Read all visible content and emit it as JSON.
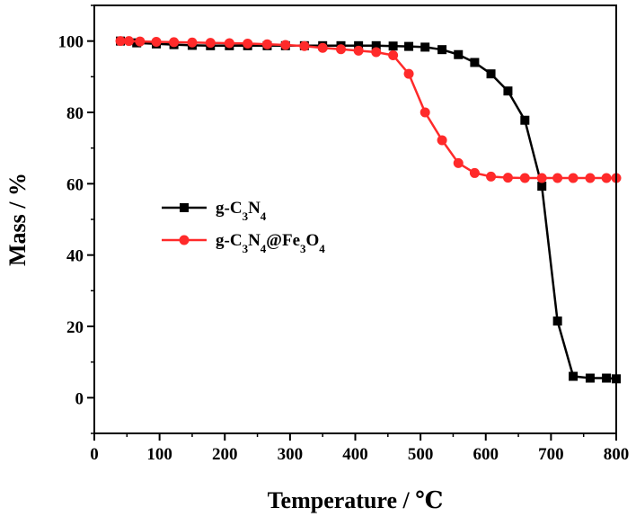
{
  "chart_data": {
    "type": "line",
    "title": "",
    "xlabel": "Temperature / ℃",
    "ylabel": "Mass / %",
    "xlim": [
      0,
      800
    ],
    "ylim": [
      -10,
      110
    ],
    "xticks": [
      0,
      100,
      200,
      300,
      400,
      500,
      600,
      700,
      800
    ],
    "yticks": [
      0,
      20,
      40,
      60,
      80,
      100
    ],
    "grid": false,
    "legend_placement": "center-left",
    "series": [
      {
        "name": "g-C3N4",
        "legend_parts": [
          {
            "t": "g-C",
            "sub": false
          },
          {
            "t": "3",
            "sub": true
          },
          {
            "t": "N",
            "sub": false
          },
          {
            "t": "4",
            "sub": true
          }
        ],
        "color": "#000000",
        "marker": "square",
        "x": [
          40,
          65,
          95,
          122,
          150,
          178,
          207,
          235,
          265,
          293,
          322,
          350,
          378,
          405,
          432,
          458,
          482,
          507,
          533,
          558,
          583,
          608,
          634,
          660,
          686,
          710,
          734,
          760,
          785,
          800
        ],
        "y": [
          100,
          99.5,
          99.2,
          99.0,
          98.8,
          98.7,
          98.7,
          98.7,
          98.7,
          98.7,
          98.7,
          98.7,
          98.7,
          98.7,
          98.7,
          98.6,
          98.5,
          98.3,
          97.6,
          96.2,
          94.0,
          90.8,
          86.0,
          77.8,
          59.3,
          21.5,
          6.0,
          5.5,
          5.5,
          5.3
        ]
      },
      {
        "name": "g-C3N4@Fe3O4",
        "legend_parts": [
          {
            "t": "g-C",
            "sub": false
          },
          {
            "t": "3",
            "sub": true
          },
          {
            "t": "N",
            "sub": false
          },
          {
            "t": "4",
            "sub": true
          },
          {
            "t": "@Fe",
            "sub": false
          },
          {
            "t": "3",
            "sub": true
          },
          {
            "t": "O",
            "sub": false
          },
          {
            "t": "4",
            "sub": true
          }
        ],
        "color": "#ff2a2a",
        "marker": "circle",
        "x": [
          40,
          53,
          70,
          95,
          122,
          150,
          178,
          207,
          235,
          265,
          293,
          322,
          350,
          378,
          405,
          432,
          458,
          482,
          507,
          533,
          558,
          583,
          608,
          634,
          660,
          686,
          710,
          734,
          760,
          785,
          800
        ],
        "y": [
          100,
          100,
          99.9,
          99.8,
          99.7,
          99.6,
          99.5,
          99.4,
          99.3,
          99.1,
          98.9,
          98.6,
          98.1,
          97.7,
          97.3,
          96.9,
          96.0,
          90.8,
          80.0,
          72.2,
          65.8,
          63.0,
          62.0,
          61.7,
          61.6,
          61.6,
          61.6,
          61.6,
          61.6,
          61.6,
          61.6
        ]
      }
    ]
  }
}
